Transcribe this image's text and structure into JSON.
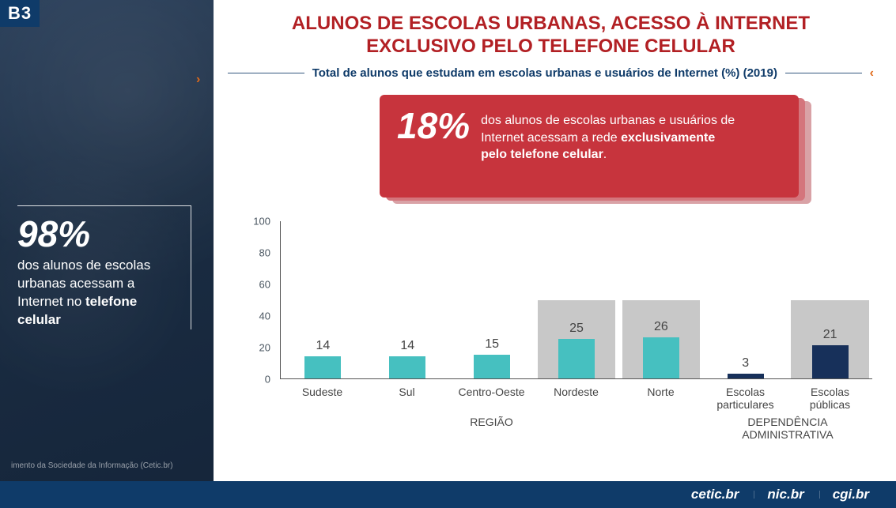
{
  "badge": "B3",
  "title_line1": "ALUNOS DE ESCOLAS URBANAS, ACESSO À INTERNET",
  "title_line2": "EXCLUSIVO PELO TELEFONE CELULAR",
  "subtitle": "Total de alunos que estudam em escolas urbanas e usuários de Internet (%) (2019)",
  "left_stat": {
    "percent": "98%",
    "desc_pre": "dos alunos de escolas urbanas acessam a Internet no ",
    "desc_bold": "telefone celular"
  },
  "callout": {
    "percent": "18%",
    "text_pre": "dos alunos de escolas urbanas e usuários de Internet acessam a rede ",
    "text_bold": "exclusivamente pelo telefone celular",
    "text_post": ".",
    "bg_color": "#c7343d"
  },
  "chart": {
    "type": "bar",
    "ylim": [
      0,
      100
    ],
    "ytick_step": 20,
    "yticks": [
      0,
      20,
      40,
      60,
      80,
      100
    ],
    "bar_color_default": "#46c0c0",
    "bar_color_dark": "#17305a",
    "highlight_bg": "#c8c8c8",
    "axis_color": "#555555",
    "label_color": "#444444",
    "label_fontsize": 14,
    "value_fontsize": 16,
    "bars": [
      {
        "label": "Sudeste",
        "value": 14,
        "color": "#46c0c0",
        "highlight": false,
        "group": "regiao"
      },
      {
        "label": "Sul",
        "value": 14,
        "color": "#46c0c0",
        "highlight": false,
        "group": "regiao"
      },
      {
        "label": "Centro-Oeste",
        "value": 15,
        "color": "#46c0c0",
        "highlight": false,
        "group": "regiao"
      },
      {
        "label": "Nordeste",
        "value": 25,
        "color": "#46c0c0",
        "highlight": true,
        "group": "regiao"
      },
      {
        "label": "Norte",
        "value": 26,
        "color": "#46c0c0",
        "highlight": true,
        "group": "regiao"
      },
      {
        "label": "Escolas particulares",
        "value": 3,
        "color": "#17305a",
        "highlight": false,
        "group": "dep"
      },
      {
        "label": "Escolas públicas",
        "value": 21,
        "color": "#17305a",
        "highlight": true,
        "group": "dep"
      }
    ],
    "groups": [
      {
        "id": "regiao",
        "label": "REGIÃO",
        "span": 5
      },
      {
        "id": "dep",
        "label": "DEPENDÊNCIA ADMINISTRATIVA",
        "span": 2
      }
    ],
    "highlight_height_value": 50
  },
  "fonte": "imento da Sociedade da Informação (Cetic.br)",
  "footer_logos": [
    "cetic.br",
    "nic.br",
    "cgi.br"
  ],
  "colors": {
    "title": "#b22024",
    "subtitle": "#0f3b69",
    "left_bg": "#1a2c42",
    "footer_bg": "#0f3b69",
    "chevron": "#e06a1a"
  }
}
